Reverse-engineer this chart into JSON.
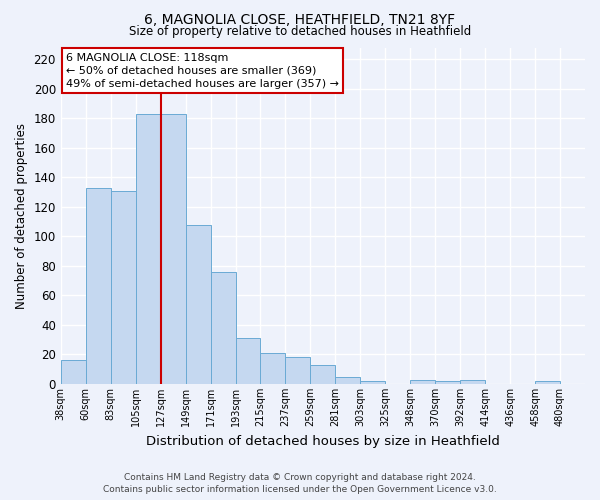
{
  "title1": "6, MAGNOLIA CLOSE, HEATHFIELD, TN21 8YF",
  "title2": "Size of property relative to detached houses in Heathfield",
  "xlabel": "Distribution of detached houses by size in Heathfield",
  "ylabel": "Number of detached properties",
  "bin_labels": [
    "38sqm",
    "60sqm",
    "83sqm",
    "105sqm",
    "127sqm",
    "149sqm",
    "171sqm",
    "193sqm",
    "215sqm",
    "237sqm",
    "259sqm",
    "281sqm",
    "303sqm",
    "325sqm",
    "348sqm",
    "370sqm",
    "392sqm",
    "414sqm",
    "436sqm",
    "458sqm",
    "480sqm"
  ],
  "bar_heights": [
    16,
    133,
    131,
    183,
    183,
    108,
    76,
    31,
    21,
    18,
    13,
    5,
    2,
    0,
    3,
    2,
    3,
    0,
    0,
    2,
    0
  ],
  "bar_color": "#c5d8f0",
  "bar_edge_color": "#6aaad4",
  "property_line_x": 4,
  "property_line_color": "#cc0000",
  "annotation_line1": "6 MAGNOLIA CLOSE: 118sqm",
  "annotation_line2": "← 50% of detached houses are smaller (369)",
  "annotation_line3": "49% of semi-detached houses are larger (357) →",
  "annotation_box_color": "#ffffff",
  "annotation_box_edge": "#cc0000",
  "ylim": [
    0,
    228
  ],
  "yticks": [
    0,
    20,
    40,
    60,
    80,
    100,
    120,
    140,
    160,
    180,
    200,
    220
  ],
  "footer1": "Contains HM Land Registry data © Crown copyright and database right 2024.",
  "footer2": "Contains public sector information licensed under the Open Government Licence v3.0.",
  "bg_color": "#eef2fb",
  "grid_color": "#ffffff",
  "plot_bg": "#eef2fb"
}
